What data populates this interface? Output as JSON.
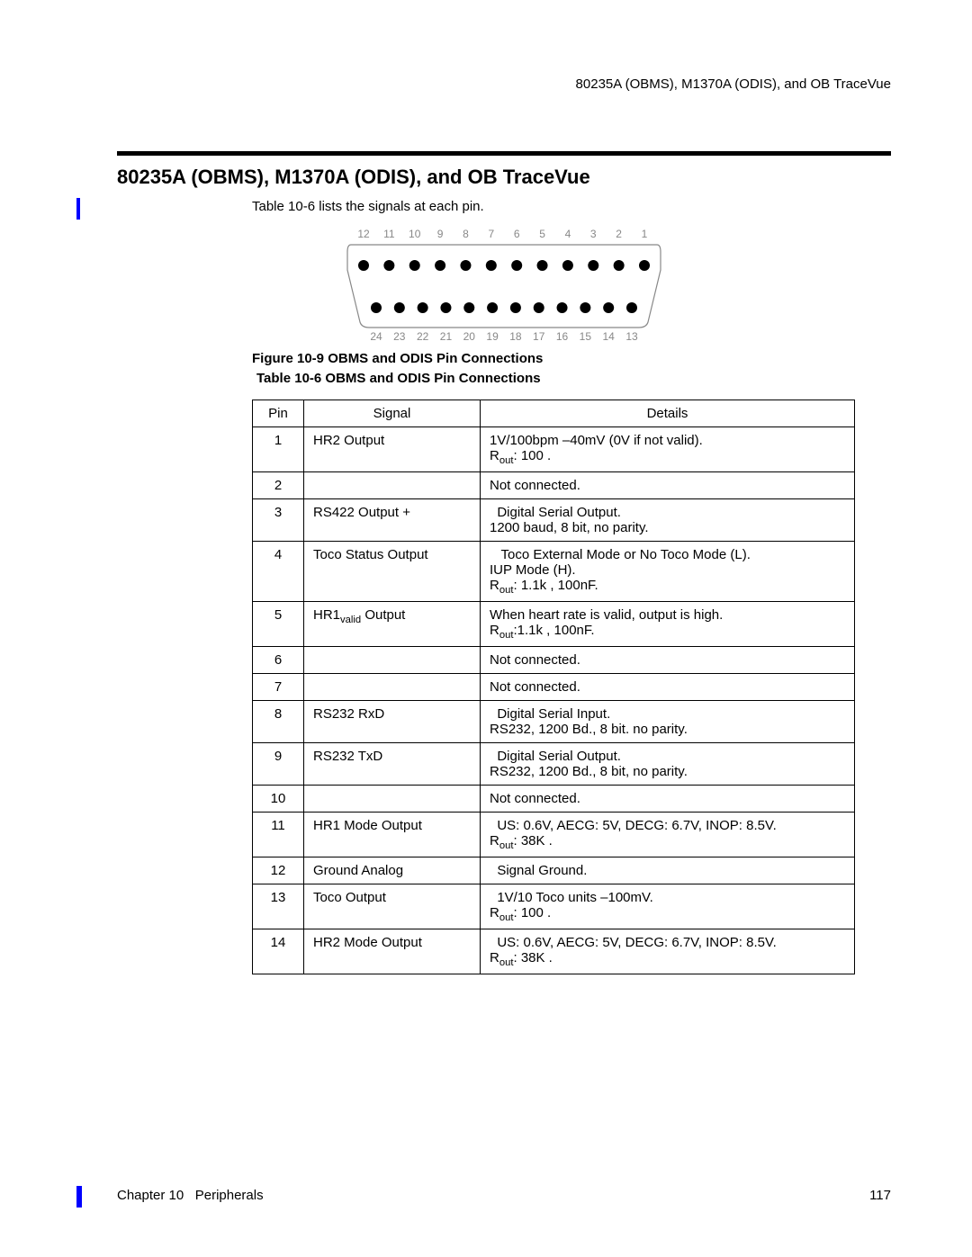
{
  "header": {
    "running_title": "80235A (OBMS), M1370A (ODIS), and OB TraceVue"
  },
  "section": {
    "title": "80235A (OBMS), M1370A (ODIS), and OB TraceVue",
    "intro_prefix": "Table 10-6",
    "intro_rest": " lists the signals at each pin."
  },
  "figure": {
    "caption": "Figure 10-9 OBMS and ODIS Pin Connections",
    "top_pins": [
      "12",
      "11",
      "10",
      "9",
      "8",
      "7",
      "6",
      "5",
      "4",
      "3",
      "2",
      "1"
    ],
    "bottom_pins": [
      "24",
      "23",
      "22",
      "21",
      "20",
      "19",
      "18",
      "17",
      "16",
      "15",
      "14",
      "13"
    ],
    "pin_color": "#000000",
    "label_color": "#888888",
    "outline_color": "#888888"
  },
  "table": {
    "caption": "Table 10-6 OBMS and ODIS Pin Connections",
    "columns": [
      "Pin",
      "Signal",
      "Details"
    ],
    "rows": [
      {
        "pin": "1",
        "signal": "HR2 Output",
        "details": "1V/100bpm –40mV (0V if not valid).<br>R<sub>out</sub>: 100 ."
      },
      {
        "pin": "2",
        "signal": "",
        "details": "Not connected."
      },
      {
        "pin": "3",
        "signal": "RS422 Output +",
        "details": "&nbsp;&nbsp;Digital Serial Output.<br>1200 baud, 8 bit, no parity."
      },
      {
        "pin": "4",
        "signal": "Toco Status Output",
        "details": "&nbsp;&nbsp;&nbsp;Toco External Mode or No Toco Mode (L).<br>IUP Mode (H).<br>R<sub>out</sub>: 1.1k , 100nF."
      },
      {
        "pin": "5",
        "signal": "HR1<sub>valid</sub> Output",
        "details": "When heart rate is valid, output is high.<br>R<sub>out</sub>:1.1k , 100nF."
      },
      {
        "pin": "6",
        "signal": "",
        "details": "Not connected."
      },
      {
        "pin": "7",
        "signal": "",
        "details": "Not connected."
      },
      {
        "pin": "8",
        "signal": "RS232 RxD",
        "details": "&nbsp;&nbsp;Digital Serial Input.<br>RS232, 1200 Bd., 8 bit. no parity."
      },
      {
        "pin": "9",
        "signal": "RS232 TxD",
        "details": "&nbsp;&nbsp;Digital Serial Output.<br>RS232, 1200 Bd., 8 bit, no parity."
      },
      {
        "pin": "10",
        "signal": "",
        "details": "Not connected."
      },
      {
        "pin": "11",
        "signal": "HR1 Mode Output",
        "details": "&nbsp;&nbsp;US: 0.6V, AECG: 5V, DECG: 6.7V, INOP: 8.5V.<br>R<sub>out</sub>: 38K ."
      },
      {
        "pin": "12",
        "signal": "Ground Analog",
        "details": "&nbsp;&nbsp;Signal Ground."
      },
      {
        "pin": "13",
        "signal": "Toco Output",
        "details": "&nbsp;&nbsp;1V/10 Toco units –100mV.<br>R<sub>out</sub>: 100 ."
      },
      {
        "pin": "14",
        "signal": "HR2 Mode Output",
        "details": "&nbsp;&nbsp;US: 0.6V, AECG: 5V, DECG: 6.7V, INOP: 8.5V.<br>R<sub>out</sub>: 38K ."
      }
    ]
  },
  "footer": {
    "chapter": "Chapter 10",
    "chapter_title": "Peripherals",
    "page_number": "117"
  }
}
